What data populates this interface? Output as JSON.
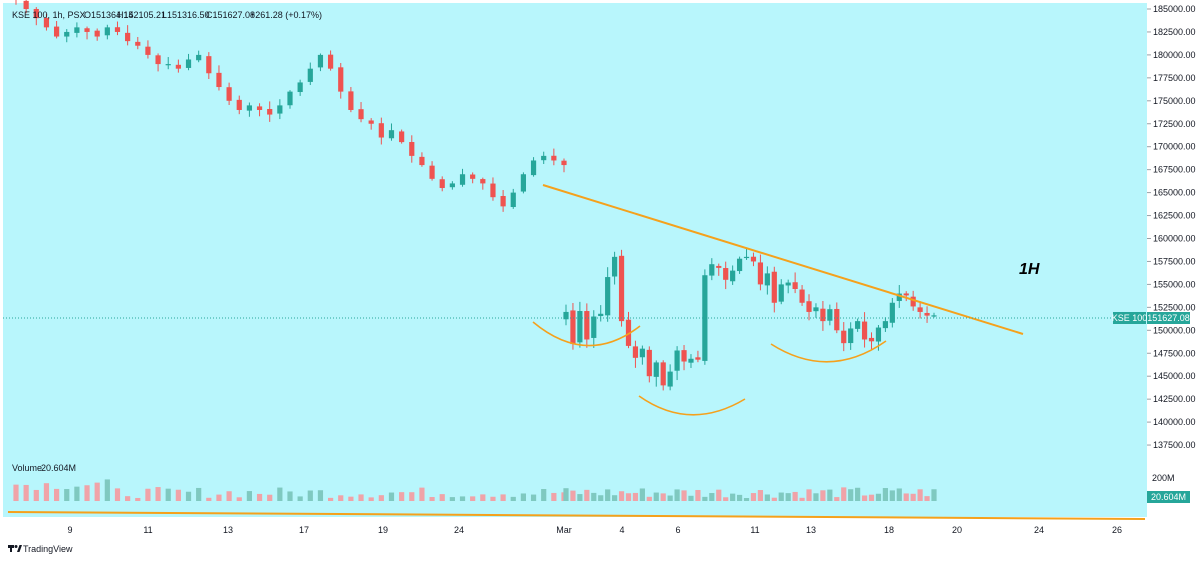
{
  "header": {
    "symbol": "KSE 100, 1h, PSX",
    "open": "O151364.14",
    "high": "H152105.21",
    "low": "L151316.50",
    "close": "C151627.08",
    "change": "+261.28 (+0.17%)"
  },
  "price_axis": {
    "ticks": [
      "185000.00",
      "182500.00",
      "180000.00",
      "177500.00",
      "175000.00",
      "172500.00",
      "170000.00",
      "167500.00",
      "165000.00",
      "162500.00",
      "160000.00",
      "157500.00",
      "155000.00",
      "152500.00",
      "150000.00",
      "147500.00",
      "145000.00",
      "142500.00",
      "140000.00",
      "137500.00"
    ],
    "last_badge_label": "KSE 100",
    "last_badge_value": "151627.08"
  },
  "volume": {
    "label": "Volume",
    "value": "20.604M",
    "axis_label": "200M",
    "badge_value": "20.604M"
  },
  "time_axis": {
    "ticks": [
      "9",
      "11",
      "13",
      "17",
      "19",
      "24",
      "Mar",
      "4",
      "6",
      "11",
      "13",
      "18",
      "20",
      "24",
      "26"
    ]
  },
  "annotation": {
    "timeframe_label": "1H"
  },
  "branding": {
    "name": "TradingView"
  },
  "colors": {
    "background": "#b8f6fc",
    "up_candle": "#26a69a",
    "down_candle": "#ef5350",
    "trendline": "#f5a11c",
    "last_price_line": "#26a69a",
    "badge_bg": "#26a69a"
  },
  "chart_data": {
    "type": "candlestick",
    "y_unit": "index points",
    "ylim": [
      135000,
      186500
    ],
    "grid": false,
    "legend": "top-left",
    "path_key": [
      152000,
      148500,
      152100,
      149000,
      151500,
      151800,
      155800,
      158000,
      151000,
      148300,
      147000,
      148000,
      145000,
      146500,
      144000,
      145500,
      147800,
      146600,
      146900,
      146800,
      156000,
      157200,
      156800,
      155500,
      156500,
      157800,
      158000,
      157500,
      155000,
      156200,
      153000,
      155000,
      155200,
      154500,
      153000,
      152000,
      152500,
      151000,
      152300,
      150000,
      148600,
      150200,
      151000,
      149000,
      148800,
      150300,
      151000,
      153000,
      154000,
      153800,
      152600,
      152000,
      151600,
      151627
    ],
    "candles_start": [
      186000,
      185000,
      184000,
      183000,
      182000,
      182500,
      183000,
      182500,
      182000,
      183000,
      182500,
      181500,
      181000,
      180000,
      179000,
      179000,
      178500,
      179500,
      180000,
      178000,
      176500,
      175000,
      174000,
      174500,
      174000,
      173500,
      174500,
      176000,
      177000,
      178500,
      180000,
      178500,
      176000,
      174000,
      173000,
      172500,
      171000,
      171800,
      170500,
      169000,
      168000,
      166500,
      165500,
      166000,
      167000,
      166500,
      166000,
      164500,
      163500,
      165000,
      167000,
      168500,
      169000,
      168500,
      168000
    ]
  }
}
